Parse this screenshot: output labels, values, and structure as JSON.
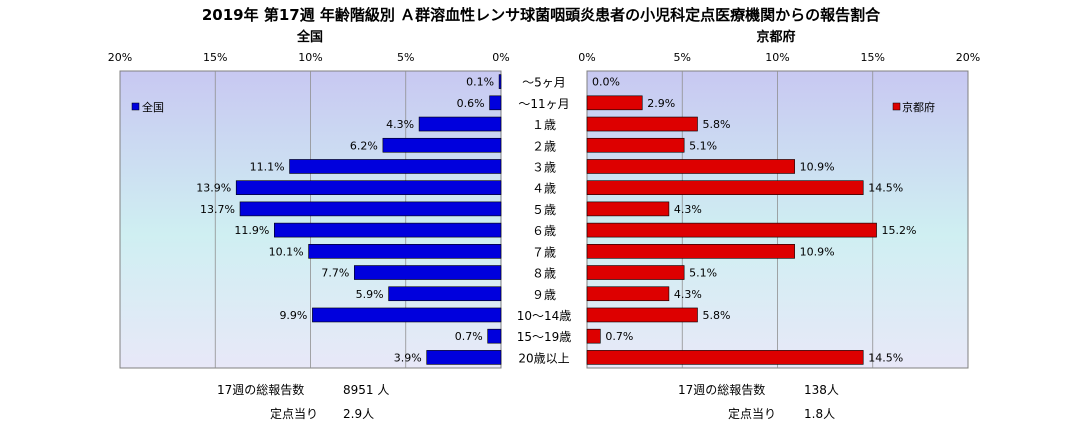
{
  "title": "2019年 第17週 年齢階級別 Ａ群溶血性レンサ球菌咽頭炎患者の小児科定点医療機関からの報告割合",
  "colors": {
    "plot_gradient_top": "#c8c8f2",
    "plot_gradient_mid": "#cfeff2",
    "plot_gradient_bottom": "#e8e8f8",
    "national_bar": "#0000dd",
    "kyoto_bar": "#dd0000"
  },
  "chart_data": [
    {
      "type": "bar",
      "orientation": "horizontal",
      "direction": "right-to-left",
      "title": "全国",
      "series": [
        {
          "name": "全国",
          "values": [
            0.1,
            0.6,
            4.3,
            6.2,
            11.1,
            13.9,
            13.7,
            11.9,
            10.1,
            7.7,
            5.9,
            9.9,
            0.7,
            3.9
          ]
        }
      ],
      "data_labels": [
        "0.1%",
        "0.6%",
        "4.3%",
        "6.2%",
        "11.1%",
        "13.9%",
        "13.7%",
        "11.9%",
        "10.1%",
        "7.7%",
        "5.9%",
        "9.9%",
        "0.7%",
        "3.9%"
      ],
      "xlim": [
        0,
        20
      ],
      "ticks": [
        "20%",
        "15%",
        "10%",
        "5%",
        "0%"
      ],
      "grid": true,
      "legend_position": "top-left"
    },
    {
      "type": "bar",
      "orientation": "horizontal",
      "direction": "left-to-right",
      "title": "京都府",
      "series": [
        {
          "name": "京都府",
          "values": [
            0.0,
            2.9,
            5.8,
            5.1,
            10.9,
            14.5,
            4.3,
            15.2,
            10.9,
            5.1,
            4.3,
            5.8,
            0.7,
            14.5
          ]
        }
      ],
      "data_labels": [
        "0.0%",
        "2.9%",
        "5.8%",
        "5.1%",
        "10.9%",
        "14.5%",
        "4.3%",
        "15.2%",
        "10.9%",
        "5.1%",
        "4.3%",
        "5.8%",
        "0.7%",
        "14.5%"
      ],
      "xlim": [
        0,
        20
      ],
      "ticks": [
        "0%",
        "5%",
        "10%",
        "15%",
        "20%"
      ],
      "grid": true,
      "legend_position": "top-right"
    }
  ],
  "categories": [
    "～5ヶ月",
    "～11ヶ月",
    "１歳",
    "２歳",
    "３歳",
    "４歳",
    "５歳",
    "６歳",
    "７歳",
    "８歳",
    "９歳",
    "10～14歳",
    "15～19歳",
    "20歳以上"
  ],
  "footer": {
    "left_total_label": "17週の総報告数",
    "left_total_value": "8951 人",
    "left_per_label": "定点当り",
    "left_per_value": "2.9人",
    "right_total_label": "17週の総報告数",
    "right_total_value": "138人",
    "right_per_label": "定点当り",
    "right_per_value": "1.8人"
  }
}
